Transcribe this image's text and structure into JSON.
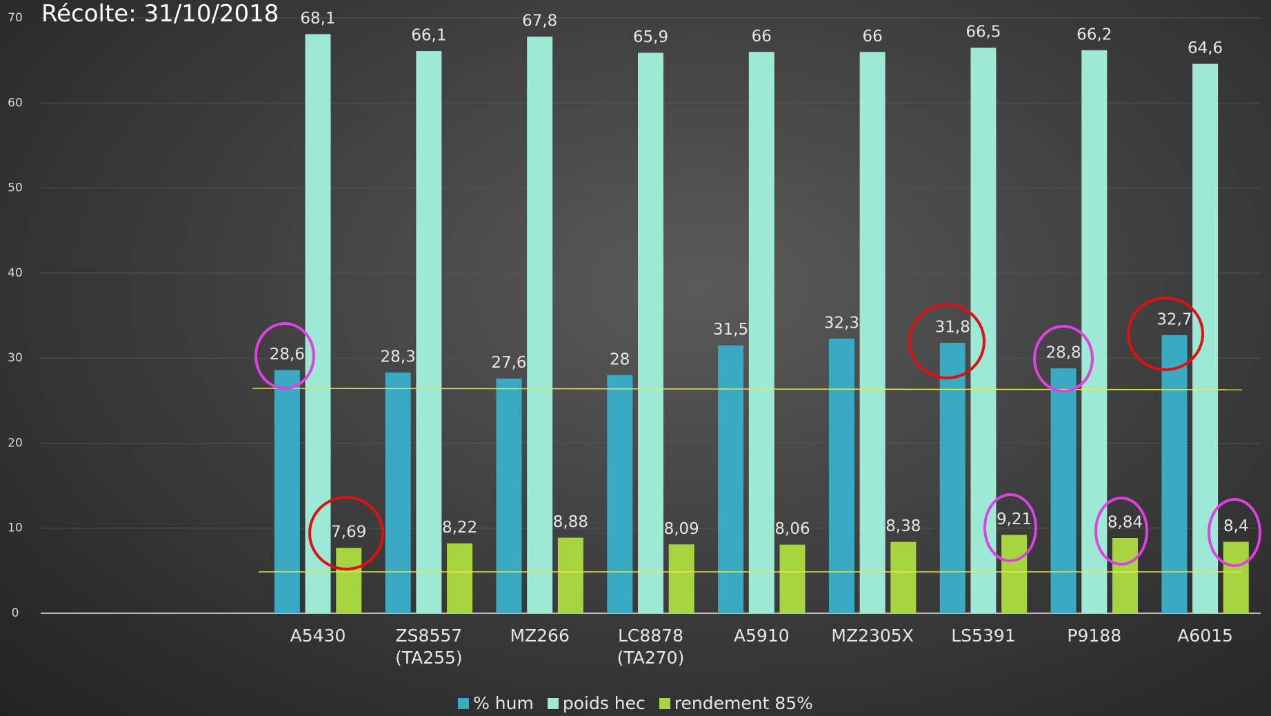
{
  "chart_data": {
    "type": "bar",
    "title": "Récolte: 31/10/2018",
    "categories": [
      null,
      null,
      "A5430",
      "ZS8557 (TA255)",
      "MZ266",
      "LC8878 (TA270)",
      "A5910",
      "MZ2305X",
      "LS5391",
      "P9188",
      "A6015"
    ],
    "series": [
      {
        "name": "% hum",
        "color": "#3aa9c2",
        "values": [
          null,
          null,
          28.6,
          28.3,
          27.6,
          28,
          31.5,
          32.3,
          31.8,
          28.8,
          32.7
        ],
        "value_labels": [
          null,
          null,
          "28,6",
          "28,3",
          "27,6",
          "28",
          "31,5",
          "32,3",
          "31,8",
          "28,8",
          "32,7"
        ]
      },
      {
        "name": "poids hec",
        "color": "#9ee9d5",
        "values": [
          null,
          null,
          68.1,
          66.1,
          67.8,
          65.9,
          66,
          66,
          66.5,
          66.2,
          64.6
        ],
        "value_labels": [
          null,
          null,
          "68,1",
          "66,1",
          "67,8",
          "65,9",
          "66",
          "66",
          "66,5",
          "66,2",
          "64,6"
        ]
      },
      {
        "name": "rendement 85%",
        "color": "#a7d540",
        "values": [
          null,
          null,
          7.69,
          8.22,
          8.88,
          8.09,
          8.06,
          8.38,
          9.21,
          8.84,
          8.4
        ],
        "value_labels": [
          null,
          null,
          "7,69",
          "8,22",
          "8,88",
          "8,09",
          "8,06",
          "8,38",
          "9,21",
          "8,84",
          "8,4"
        ]
      }
    ],
    "ylim": [
      0,
      70
    ],
    "yticks": [
      0,
      10,
      20,
      30,
      40,
      50,
      60,
      70
    ],
    "grid": true,
    "legend": "bottom"
  }
}
